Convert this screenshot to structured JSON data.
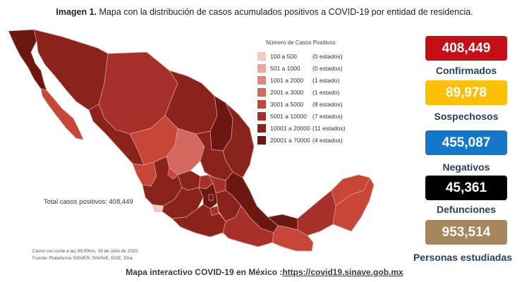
{
  "header": {
    "label": "Imagen 1.",
    "title": "Mapa con la distribución de casos acumulados positivos a COVID-19 por entidad de residencia."
  },
  "legend": {
    "title": "Número de Casos Positivos",
    "items": [
      {
        "range": "100 a   500",
        "count": "(0 estados)",
        "color": "#f3c9c4"
      },
      {
        "range": "501 a  1000",
        "count": "(0 estados)",
        "color": "#e9a6a0"
      },
      {
        "range": "1001 a  2000",
        "count": "(1 estado)",
        "color": "#df8880"
      },
      {
        "range": "2001 a  3000",
        "count": "(1 estado)",
        "color": "#d5695f"
      },
      {
        "range": "3001 a  5000",
        "count": "(8 estados)",
        "color": "#c84638"
      },
      {
        "range": "5001 a 10000",
        "count": "(7 estados)",
        "color": "#a8302a"
      },
      {
        "range": "10001 a 20000",
        "count": "(11 estados)",
        "color": "#8b231d"
      },
      {
        "range": "20001 a 70000",
        "count": "(4 estados)",
        "color": "#6d1712"
      }
    ]
  },
  "total": "Total casos positivos: 408,449",
  "footnotes": {
    "cutoff": "Cierre con corte a las 09:00hrs, 29 de Julio de 2020",
    "source": "Fuente: Plataforma SISVER, SINAVE, DGE, SSa."
  },
  "stats": [
    {
      "value": "408,449",
      "label": "Confirmados",
      "color": "#c40e18"
    },
    {
      "value": "89,978",
      "label": "Sospechosos",
      "color": "#fdc004"
    },
    {
      "value": "455,087",
      "label": "Negativos",
      "color": "#1477ca"
    },
    {
      "value": "45,361",
      "label": "Defunciones",
      "color": "#000000"
    },
    {
      "value": "953,514",
      "label": "Personas estudiadas",
      "color": "#a6875d"
    }
  ],
  "footer": {
    "prefix": "Mapa interactivo COVID-19 en México :",
    "url": "https://covid19.sinave.gob.mx"
  }
}
